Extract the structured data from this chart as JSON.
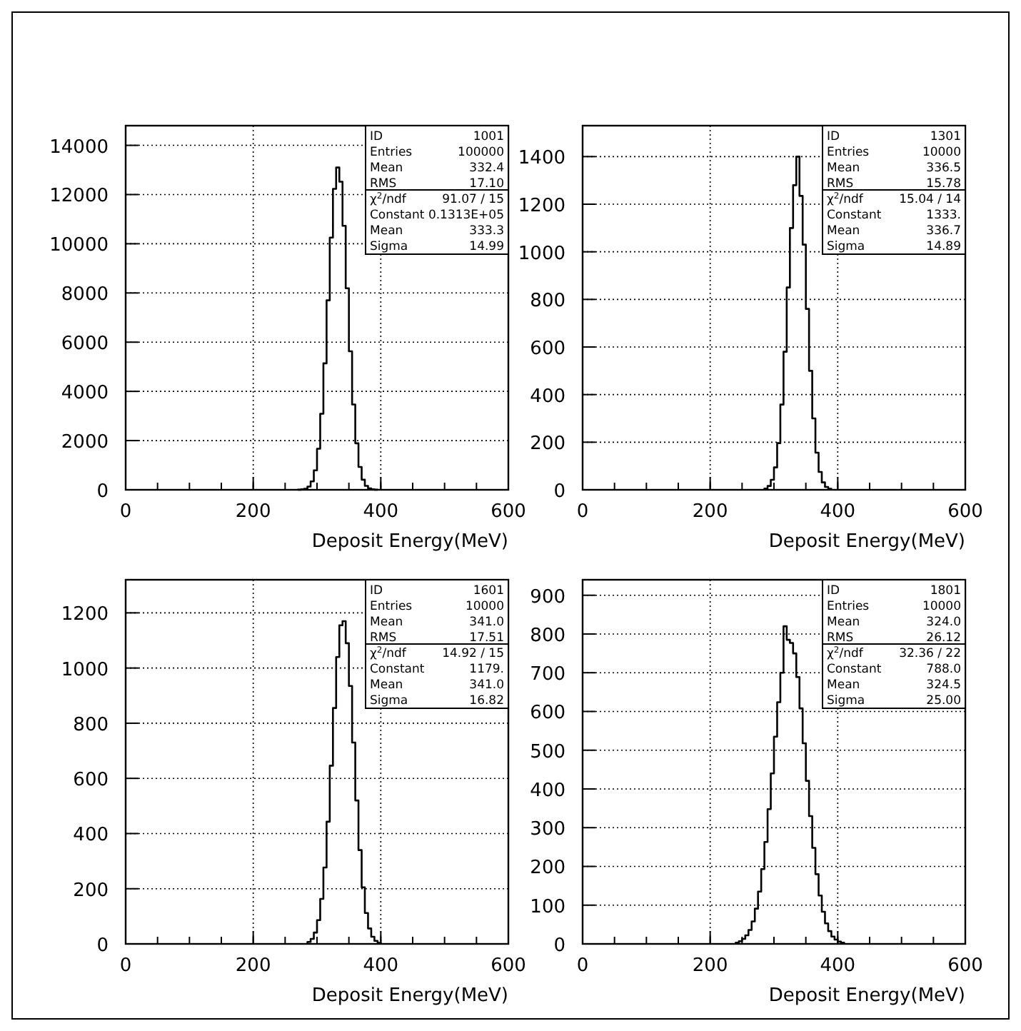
{
  "chart_data": [
    {
      "type": "histogram",
      "xlabel": "Deposit Energy(MeV)",
      "color": "#000000",
      "grid": true,
      "xlim": [
        0,
        600
      ],
      "xticks": [
        0,
        200,
        400,
        600
      ],
      "ylim": [
        0,
        14800
      ],
      "yticks": [
        0,
        2000,
        4000,
        6000,
        8000,
        10000,
        12000,
        14000
      ],
      "bins": [
        270,
        275,
        280,
        285,
        290,
        295,
        300,
        305,
        310,
        315,
        320,
        325,
        330,
        335,
        340,
        345,
        350,
        355,
        360,
        365,
        370,
        375,
        380,
        385,
        390,
        395
      ],
      "values": [
        5,
        20,
        40,
        130,
        340,
        790,
        1670,
        3090,
        5140,
        7700,
        10250,
        12230,
        13100,
        12520,
        10730,
        8190,
        5630,
        3470,
        1890,
        930,
        410,
        160,
        60,
        20,
        5
      ],
      "annotations": [
        "ID",
        "1001",
        "Entries",
        "100000",
        "Mean",
        "332.4",
        "RMS",
        "17.10",
        "χ$^{2}$/ndf",
        "91.07  /  15",
        "Constant",
        "0.1313E+05",
        "Mean",
        "333.3",
        "Sigma",
        "14.99"
      ]
    },
    {
      "type": "histogram",
      "xlabel": "Deposit Energy(MeV)",
      "color": "#000000",
      "grid": true,
      "xlim": [
        0,
        600
      ],
      "xticks": [
        0,
        200,
        400,
        600
      ],
      "ylim": [
        0,
        1530
      ],
      "yticks": [
        0,
        200,
        400,
        600,
        800,
        1000,
        1200,
        1400
      ],
      "bins": [
        285,
        290,
        295,
        300,
        305,
        310,
        315,
        320,
        325,
        330,
        335,
        340,
        345,
        350,
        355,
        360,
        365,
        370,
        375,
        380,
        385,
        390
      ],
      "values": [
        5,
        16,
        42,
        94,
        196,
        358,
        580,
        850,
        1100,
        1280,
        1400,
        1235,
        1030,
        760,
        500,
        300,
        156,
        75,
        31,
        12,
        4
      ],
      "annotations": [
        "ID",
        "1301",
        "Entries",
        "10000",
        "Mean",
        "336.5",
        "RMS",
        "15.78",
        "χ$^{2}$/ndf",
        "15.04  /  14",
        "Constant",
        "1333.",
        "Mean",
        "336.7",
        "Sigma",
        "14.89"
      ]
    },
    {
      "type": "histogram",
      "xlabel": "Deposit Energy(MeV)",
      "color": "#000000",
      "grid": true,
      "xlim": [
        0,
        600
      ],
      "xticks": [
        0,
        200,
        400,
        600
      ],
      "ylim": [
        0,
        1320
      ],
      "yticks": [
        0,
        200,
        400,
        600,
        800,
        1000,
        1200
      ],
      "bins": [
        285,
        290,
        295,
        300,
        305,
        310,
        315,
        320,
        325,
        330,
        335,
        340,
        345,
        350,
        355,
        360,
        365,
        370,
        375,
        380,
        385,
        390,
        395,
        400
      ],
      "values": [
        7,
        18,
        41,
        86,
        163,
        277,
        443,
        646,
        855,
        1040,
        1155,
        1170,
        1090,
        935,
        730,
        520,
        340,
        205,
        112,
        56,
        26,
        11,
        4
      ],
      "annotations": [
        "ID",
        "1601",
        "Entries",
        "10000",
        "Mean",
        "341.0",
        "RMS",
        "17.51",
        "χ$^{2}$/ndf",
        "14.92  /  15",
        "Constant",
        "1179.",
        "Mean",
        "341.0",
        "Sigma",
        "16.82"
      ]
    },
    {
      "type": "histogram",
      "xlabel": "Deposit Energy(MeV)",
      "color": "#000000",
      "grid": true,
      "xlim": [
        0,
        600
      ],
      "xticks": [
        0,
        200,
        400,
        600
      ],
      "ylim": [
        0,
        940
      ],
      "yticks": [
        0,
        100,
        200,
        300,
        400,
        500,
        600,
        700,
        800,
        900
      ],
      "bins": [
        240,
        245,
        250,
        255,
        260,
        265,
        270,
        275,
        280,
        285,
        290,
        295,
        300,
        305,
        310,
        315,
        320,
        325,
        330,
        335,
        340,
        345,
        350,
        355,
        360,
        365,
        370,
        375,
        380,
        385,
        390,
        395,
        400,
        405,
        410
      ],
      "values": [
        3,
        7,
        13,
        22,
        36,
        58,
        91,
        135,
        193,
        263,
        348,
        440,
        535,
        624,
        700,
        820,
        785,
        777,
        750,
        689,
        608,
        518,
        421,
        330,
        248,
        180,
        125,
        83,
        53,
        33,
        19,
        11,
        6,
        3
      ],
      "annotations": [
        "ID",
        "1801",
        "Entries",
        "10000",
        "Mean",
        "324.0",
        "RMS",
        "26.12",
        "χ$^{2}$/ndf",
        "32.36  /  22",
        "Constant",
        "788.0",
        "Mean",
        "324.5",
        "Sigma",
        "25.00"
      ]
    }
  ]
}
